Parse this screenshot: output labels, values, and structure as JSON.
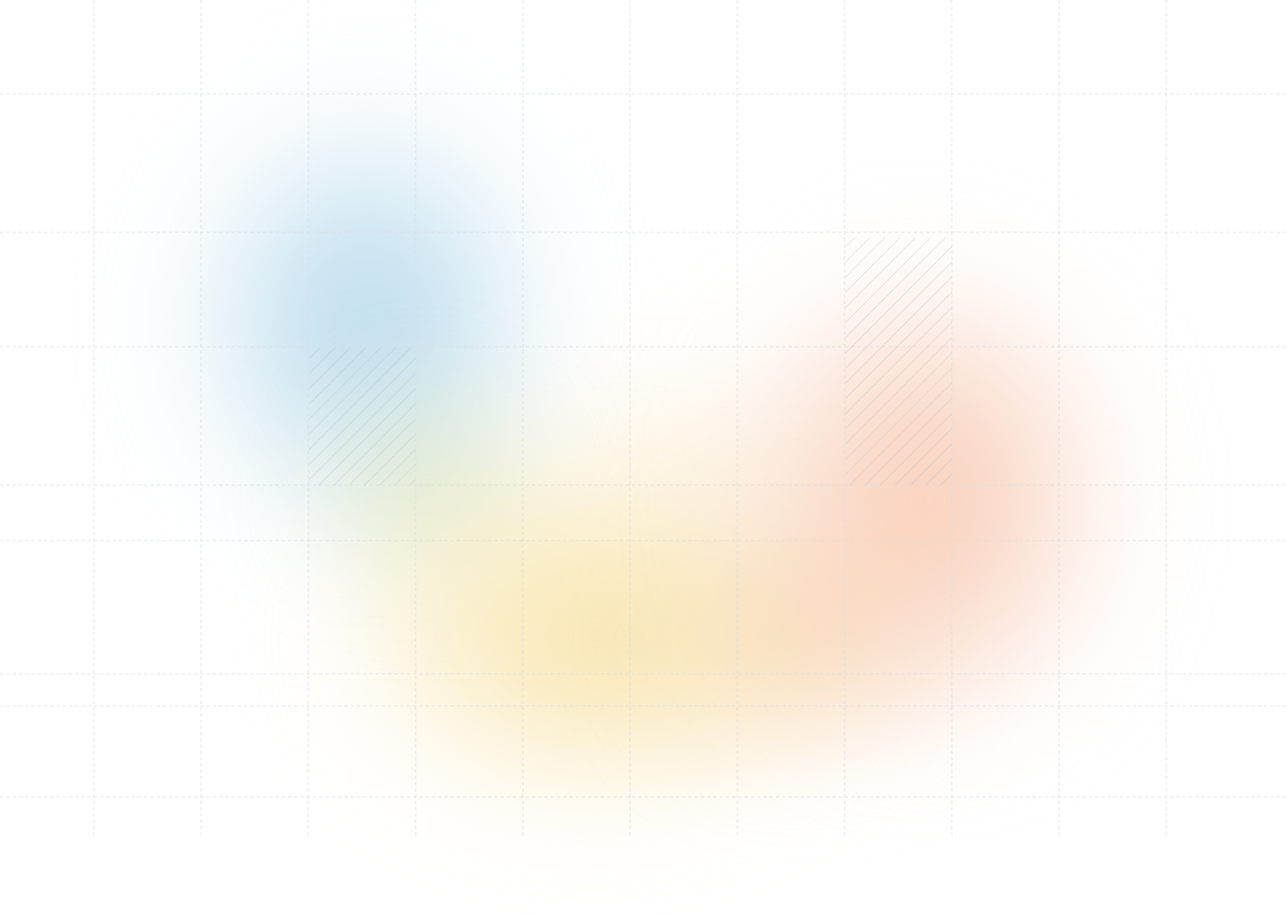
{
  "background": {
    "base_color": "#ffffff",
    "grid_color": "#d9dde3",
    "hatch_color": "#b8bcc4",
    "blob_colors": {
      "blue": "#c2e0ee",
      "yellow": "#f7e3a8",
      "green": "#dce2b4",
      "orange": "#f7c9b3",
      "peach": "#f8d6a8"
    }
  }
}
